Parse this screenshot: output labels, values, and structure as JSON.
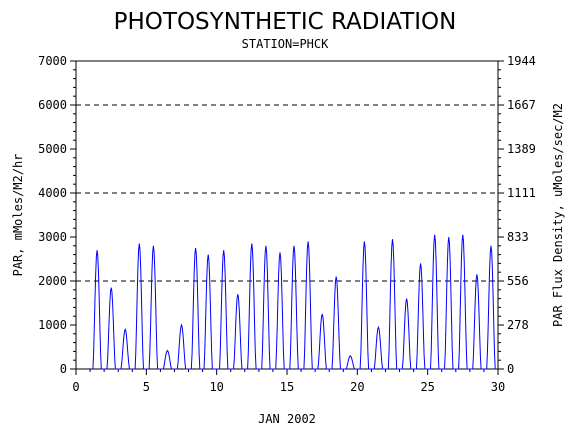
{
  "chart_data": {
    "type": "line",
    "title": "PHOTOSYNTHETIC RADIATION",
    "subtitle": "STATION=PHCK",
    "xlabel": "JAN 2002",
    "ylabel": "PAR, mMoles/M2/hr",
    "y2label": "PAR Flux Density, uMoles/sec/M2",
    "xlim": [
      0,
      30
    ],
    "ylim": [
      0,
      7000
    ],
    "x_ticks": [
      "0",
      "5",
      "10",
      "15",
      "20",
      "25",
      "30"
    ],
    "y_ticks": [
      "0",
      "1000",
      "2000",
      "3000",
      "4000",
      "5000",
      "6000",
      "7000"
    ],
    "y2_ticks": [
      "0",
      "278",
      "556",
      "833",
      "1111",
      "1389",
      "1667",
      "1944"
    ],
    "gridlines_dashed_y": [
      2000,
      4000,
      6000
    ],
    "line_color": "#0000ff",
    "series": [
      {
        "daily_peaks": [
          {
            "day": 1.5,
            "peak": 2700
          },
          {
            "day": 2.5,
            "peak": 1850
          },
          {
            "day": 3.5,
            "peak": 900
          },
          {
            "day": 4.5,
            "peak": 2850
          },
          {
            "day": 5.5,
            "peak": 2800
          },
          {
            "day": 6.5,
            "peak": 420
          },
          {
            "day": 7.5,
            "peak": 1000
          },
          {
            "day": 8.5,
            "peak": 2750
          },
          {
            "day": 9.4,
            "peak": 2600
          },
          {
            "day": 10.5,
            "peak": 2700
          },
          {
            "day": 11.5,
            "peak": 1700
          },
          {
            "day": 12.5,
            "peak": 2850
          },
          {
            "day": 13.5,
            "peak": 2800
          },
          {
            "day": 14.5,
            "peak": 2650
          },
          {
            "day": 15.5,
            "peak": 2800
          },
          {
            "day": 16.5,
            "peak": 2900
          },
          {
            "day": 17.5,
            "peak": 1250
          },
          {
            "day": 18.5,
            "peak": 2100
          },
          {
            "day": 19.5,
            "peak": 300
          },
          {
            "day": 20.5,
            "peak": 2900
          },
          {
            "day": 21.5,
            "peak": 950
          },
          {
            "day": 22.5,
            "peak": 2950
          },
          {
            "day": 23.5,
            "peak": 1600
          },
          {
            "day": 24.5,
            "peak": 2400
          },
          {
            "day": 25.5,
            "peak": 3050
          },
          {
            "day": 26.5,
            "peak": 3000
          },
          {
            "day": 27.5,
            "peak": 3050
          },
          {
            "day": 28.5,
            "peak": 2150
          },
          {
            "day": 29.5,
            "peak": 2800
          }
        ]
      }
    ]
  }
}
